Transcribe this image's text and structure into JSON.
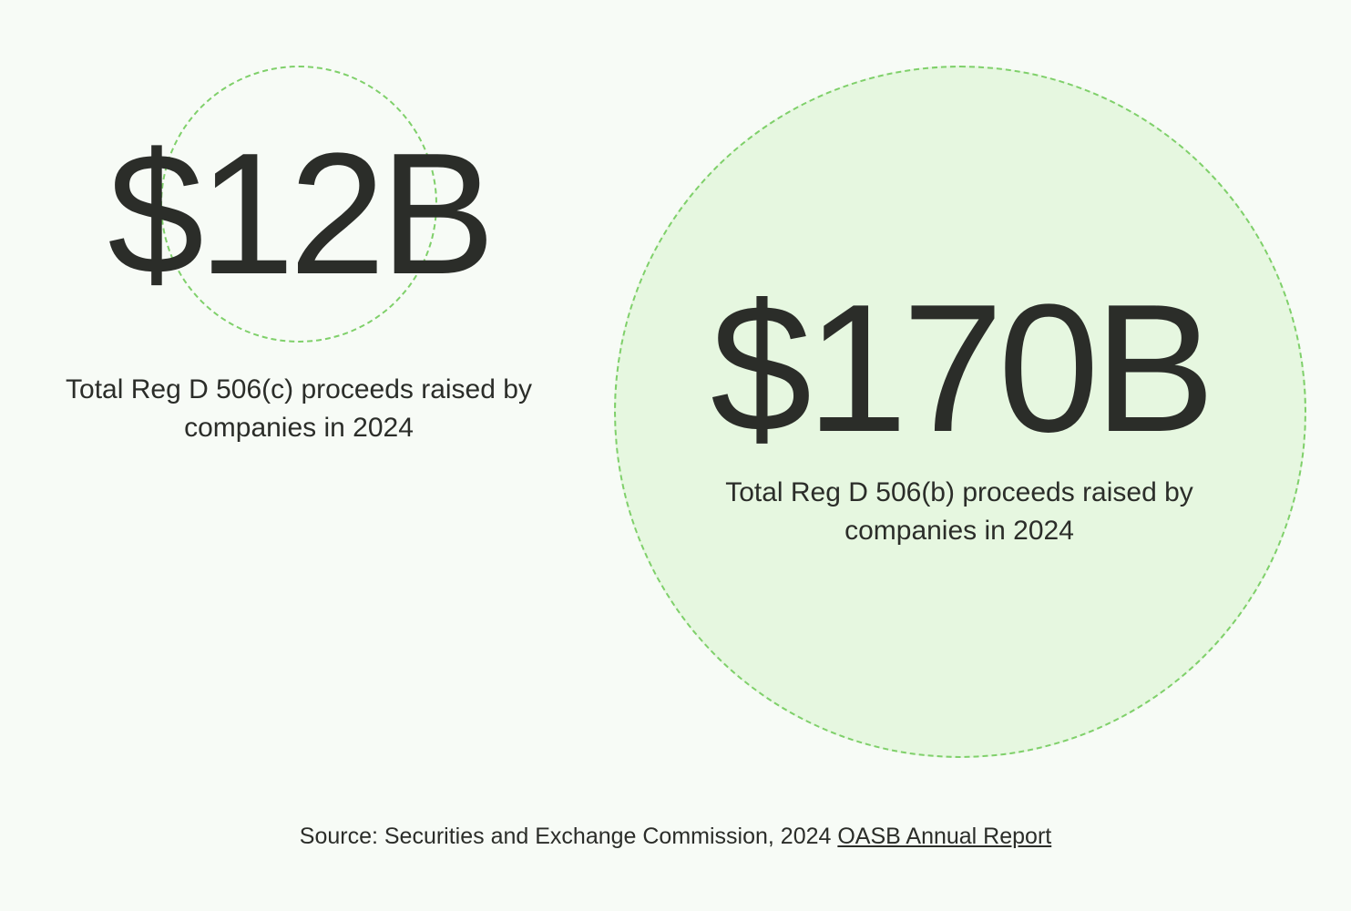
{
  "chart_data": {
    "type": "bubble",
    "items": [
      {
        "value_label": "$12B",
        "value": 12,
        "unit": "billion USD",
        "caption": "Total Reg D 506(c) proceeds raised by companies in 2024"
      },
      {
        "value_label": "$170B",
        "value": 170,
        "unit": "billion USD",
        "caption": "Total Reg D 506(b) proceeds raised by companies in 2024"
      }
    ]
  },
  "footer": {
    "source_prefix": "Source: Securities and Exchange Commission, 2024 ",
    "source_link": "OASB Annual Report"
  },
  "colors": {
    "background": "#f7fbf6",
    "circle_fill": "#e6f7e0",
    "circle_border": "#7fd06a",
    "text": "#2b2d29"
  }
}
